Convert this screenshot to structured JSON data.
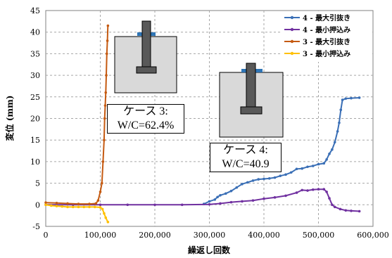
{
  "chart_data": {
    "type": "scatter",
    "xlabel": "繰返し回数",
    "ylabel": "変位 (mm)",
    "xlim": [
      0,
      600000
    ],
    "ylim": [
      -5,
      45
    ],
    "grid": true,
    "legend_position": "top-right",
    "x_ticks": [
      "0",
      "100,000",
      "200,000",
      "300,000",
      "400,000",
      "500,000",
      "600,000"
    ],
    "y_ticks": [
      "-5",
      "0",
      "5",
      "10",
      "15",
      "20",
      "25",
      "30",
      "35",
      "40",
      "45"
    ],
    "series": [
      {
        "name": "4 - 最大引抜き",
        "color": "#3a6fb6",
        "points": [
          [
            290000,
            0.2
          ],
          [
            300000,
            0.8
          ],
          [
            310000,
            1.2
          ],
          [
            315000,
            1.8
          ],
          [
            320000,
            2.2
          ],
          [
            330000,
            2.6
          ],
          [
            340000,
            3.2
          ],
          [
            350000,
            4.0
          ],
          [
            360000,
            4.8
          ],
          [
            370000,
            5.2
          ],
          [
            380000,
            5.6
          ],
          [
            390000,
            5.9
          ],
          [
            400000,
            6.0
          ],
          [
            410000,
            6.1
          ],
          [
            420000,
            6.3
          ],
          [
            430000,
            6.7
          ],
          [
            440000,
            7.0
          ],
          [
            450000,
            7.5
          ],
          [
            460000,
            8.3
          ],
          [
            470000,
            8.4
          ],
          [
            480000,
            8.8
          ],
          [
            490000,
            9.0
          ],
          [
            500000,
            9.4
          ],
          [
            510000,
            9.6
          ],
          [
            515000,
            10.5
          ],
          [
            520000,
            11.8
          ],
          [
            525000,
            12.8
          ],
          [
            530000,
            14.5
          ],
          [
            535000,
            17.0
          ],
          [
            538000,
            19.0
          ],
          [
            541000,
            22.0
          ],
          [
            544000,
            24.3
          ],
          [
            550000,
            24.6
          ],
          [
            560000,
            24.7
          ],
          [
            575000,
            24.8
          ]
        ]
      },
      {
        "name": "4 - 最小押込み",
        "color": "#7030a0",
        "points": [
          [
            0,
            0.0
          ],
          [
            50000,
            0.0
          ],
          [
            100000,
            0.0
          ],
          [
            150000,
            0.0
          ],
          [
            200000,
            0.0
          ],
          [
            250000,
            0.0
          ],
          [
            300000,
            0.1
          ],
          [
            320000,
            0.3
          ],
          [
            340000,
            0.6
          ],
          [
            360000,
            0.8
          ],
          [
            380000,
            1.0
          ],
          [
            400000,
            1.4
          ],
          [
            420000,
            1.7
          ],
          [
            440000,
            2.1
          ],
          [
            460000,
            2.8
          ],
          [
            470000,
            3.4
          ],
          [
            480000,
            3.3
          ],
          [
            490000,
            3.5
          ],
          [
            500000,
            3.6
          ],
          [
            510000,
            3.6
          ],
          [
            515000,
            3.0
          ],
          [
            520000,
            1.5
          ],
          [
            525000,
            0.0
          ],
          [
            530000,
            -0.5
          ],
          [
            540000,
            -1.0
          ],
          [
            550000,
            -1.3
          ],
          [
            560000,
            -1.4
          ],
          [
            575000,
            -1.5
          ]
        ]
      },
      {
        "name": "3 - 最大引抜き",
        "color": "#c55a11",
        "points": [
          [
            0,
            0.5
          ],
          [
            20000,
            0.4
          ],
          [
            40000,
            0.3
          ],
          [
            60000,
            0.2
          ],
          [
            80000,
            0.2
          ],
          [
            92000,
            0.3
          ],
          [
            96000,
            1.0
          ],
          [
            100000,
            3.0
          ],
          [
            103000,
            5.0
          ],
          [
            105000,
            10.0
          ],
          [
            107000,
            15.0
          ],
          [
            108000,
            20.0
          ],
          [
            109000,
            23.0
          ],
          [
            110000,
            26.0
          ],
          [
            111000,
            30.0
          ],
          [
            112000,
            35.0
          ],
          [
            113000,
            38.0
          ],
          [
            114000,
            41.5
          ]
        ]
      },
      {
        "name": "3 - 最小押込み",
        "color": "#ffc000",
        "points": [
          [
            0,
            0.0
          ],
          [
            10000,
            -0.2
          ],
          [
            20000,
            -0.3
          ],
          [
            30000,
            -0.4
          ],
          [
            40000,
            -0.5
          ],
          [
            50000,
            -0.5
          ],
          [
            60000,
            -0.5
          ],
          [
            70000,
            -0.5
          ],
          [
            80000,
            -0.5
          ],
          [
            90000,
            -0.5
          ],
          [
            100000,
            -0.6
          ],
          [
            104000,
            -1.0
          ],
          [
            107000,
            -2.0
          ],
          [
            110000,
            -3.0
          ],
          [
            114000,
            -4.0
          ]
        ]
      }
    ],
    "annotations": [
      {
        "line1": "ケース 3:",
        "line2": "W/C=62.4%"
      },
      {
        "line1": "ケース 4:",
        "line2": "W/C=40.9"
      }
    ]
  }
}
